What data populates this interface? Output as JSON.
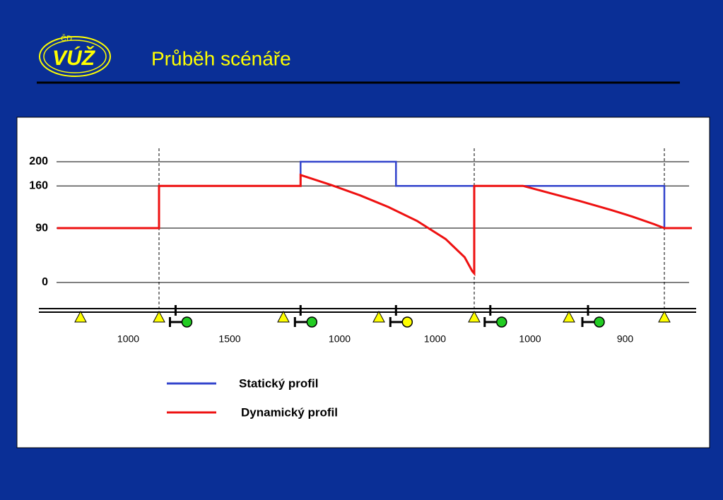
{
  "header": {
    "logo_top": "ČD",
    "logo": "VÚŽ",
    "title": "Průběh scénáře"
  },
  "chart_data": {
    "type": "line",
    "ylim": [
      0,
      200
    ],
    "yticks": [
      0,
      90,
      160,
      200
    ],
    "grid": true,
    "markers": [
      0,
      1000,
      2500,
      3500,
      4500,
      5500,
      6400
    ],
    "segments": [
      1000,
      1500,
      1000,
      1000,
      1000,
      900
    ],
    "boundaries": [
      1000,
      4500,
      6400
    ],
    "signals": {
      "x": [
        1200,
        2680,
        3680,
        4670,
        5680
      ],
      "colors": [
        "#22cc22",
        "#22cc22",
        "#ffff00",
        "#22cc22",
        "#22cc22"
      ]
    },
    "series": [
      {
        "name": "Statický profil",
        "color": "#3344cc",
        "x": [
          -300,
          1000,
          1000,
          2680,
          2680,
          3680,
          3680,
          6400,
          6400,
          6660
        ],
        "values": [
          90,
          90,
          160,
          160,
          200,
          200,
          160,
          160,
          90,
          90
        ]
      },
      {
        "name": "Dynamický profil",
        "color": "#ee1111",
        "x": [
          -300,
          1000,
          1000,
          2680,
          2680,
          3000,
          3300,
          3600,
          3900,
          4200,
          4400,
          4480,
          4500,
          4500,
          5015,
          5300,
          5600,
          5900,
          6100,
          6300,
          6400,
          6660
        ],
        "values": [
          90,
          90,
          160,
          160,
          178,
          161.5,
          144.5,
          125,
          102,
          72,
          41.7,
          18.6,
          15,
          160,
          160,
          148,
          135,
          120,
          109,
          96.8,
          90,
          90
        ]
      }
    ]
  }
}
